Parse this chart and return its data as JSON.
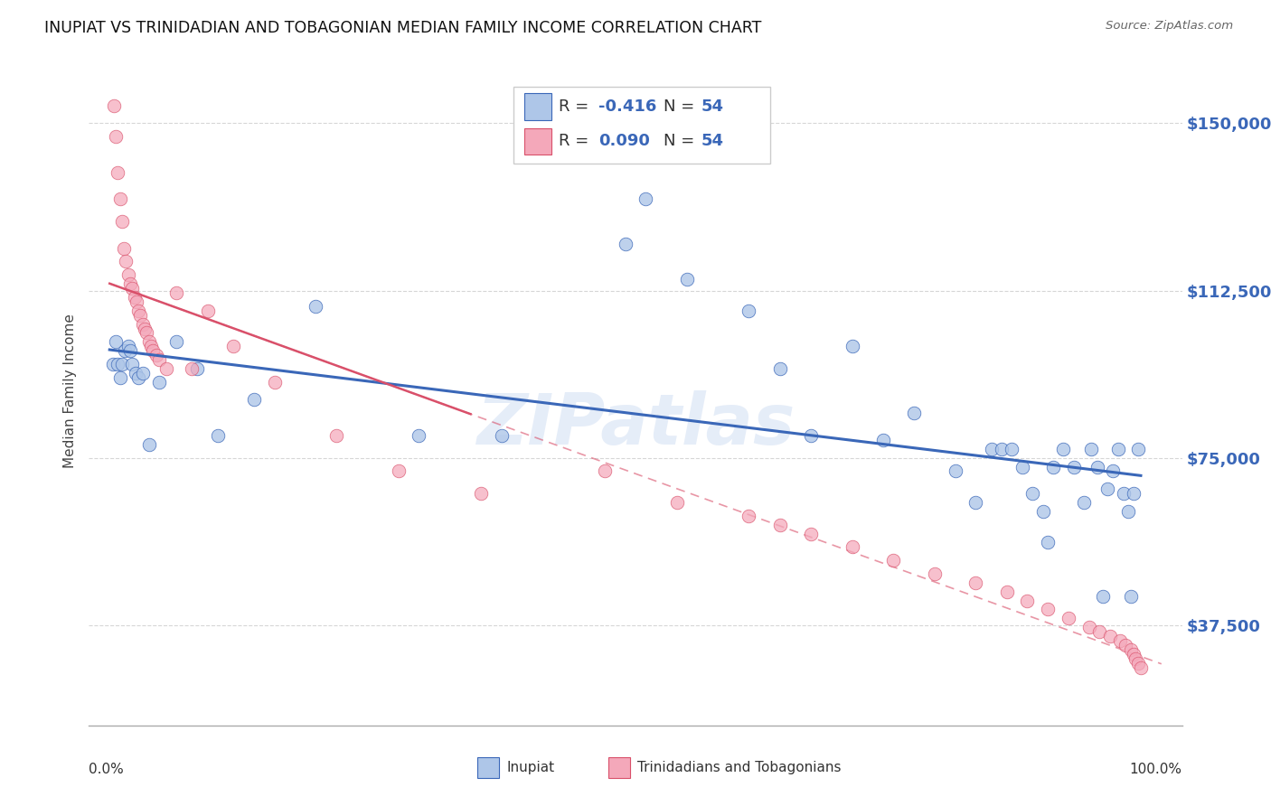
{
  "title": "INUPIAT VS TRINIDADIAN AND TOBAGONIAN MEDIAN FAMILY INCOME CORRELATION CHART",
  "source": "Source: ZipAtlas.com",
  "ylabel": "Median Family Income",
  "ytick_labels": [
    "$37,500",
    "$75,000",
    "$112,500",
    "$150,000"
  ],
  "ytick_values": [
    37500,
    75000,
    112500,
    150000
  ],
  "ymin": 15000,
  "ymax": 165000,
  "xmin": 0.0,
  "xmax": 1.0,
  "blue_color": "#aec6e8",
  "pink_color": "#f4a8ba",
  "line_blue": "#3a67b8",
  "line_pink": "#d9506a",
  "watermark": "ZIPatlas",
  "blue_x": [
    0.003,
    0.006,
    0.008,
    0.01,
    0.012,
    0.015,
    0.018,
    0.02,
    0.022,
    0.025,
    0.028,
    0.032,
    0.038,
    0.048,
    0.065,
    0.085,
    0.105,
    0.14,
    0.2,
    0.3,
    0.38,
    0.5,
    0.52,
    0.56,
    0.62,
    0.65,
    0.68,
    0.72,
    0.75,
    0.78,
    0.82,
    0.84,
    0.855,
    0.865,
    0.875,
    0.885,
    0.895,
    0.905,
    0.91,
    0.915,
    0.925,
    0.935,
    0.945,
    0.952,
    0.958,
    0.963,
    0.968,
    0.973,
    0.978,
    0.983,
    0.988,
    0.99,
    0.993,
    0.997
  ],
  "blue_y": [
    96000,
    101000,
    96000,
    93000,
    96000,
    99000,
    100000,
    99000,
    96000,
    94000,
    93000,
    94000,
    78000,
    92000,
    101000,
    95000,
    80000,
    88000,
    109000,
    80000,
    80000,
    123000,
    133000,
    115000,
    108000,
    95000,
    80000,
    100000,
    79000,
    85000,
    72000,
    65000,
    77000,
    77000,
    77000,
    73000,
    67000,
    63000,
    56000,
    73000,
    77000,
    73000,
    65000,
    77000,
    73000,
    44000,
    68000,
    72000,
    77000,
    67000,
    63000,
    44000,
    67000,
    77000
  ],
  "pink_x": [
    0.004,
    0.006,
    0.008,
    0.01,
    0.012,
    0.014,
    0.016,
    0.018,
    0.02,
    0.022,
    0.024,
    0.026,
    0.028,
    0.03,
    0.032,
    0.034,
    0.036,
    0.038,
    0.04,
    0.042,
    0.045,
    0.048,
    0.055,
    0.065,
    0.08,
    0.095,
    0.12,
    0.16,
    0.22,
    0.28,
    0.36,
    0.48,
    0.55,
    0.62,
    0.65,
    0.68,
    0.72,
    0.76,
    0.8,
    0.84,
    0.87,
    0.89,
    0.91,
    0.93,
    0.95,
    0.96,
    0.97,
    0.98,
    0.985,
    0.99,
    0.993,
    0.995,
    0.997,
    1.0
  ],
  "pink_y": [
    154000,
    147000,
    139000,
    133000,
    128000,
    122000,
    119000,
    116000,
    114000,
    113000,
    111000,
    110000,
    108000,
    107000,
    105000,
    104000,
    103000,
    101000,
    100000,
    99000,
    98000,
    97000,
    95000,
    112000,
    95000,
    108000,
    100000,
    92000,
    80000,
    72000,
    67000,
    72000,
    65000,
    62000,
    60000,
    58000,
    55000,
    52000,
    49000,
    47000,
    45000,
    43000,
    41000,
    39000,
    37000,
    36000,
    35000,
    34000,
    33000,
    32000,
    31000,
    30000,
    29000,
    28000
  ]
}
